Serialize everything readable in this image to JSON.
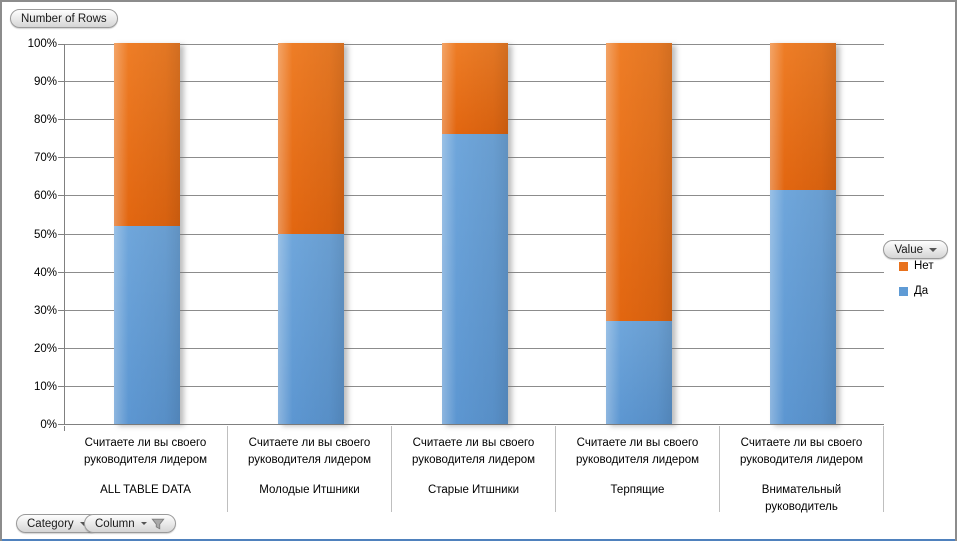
{
  "frame": {
    "bg": "#FFFFFF",
    "border_color": "#8C8C8C",
    "bottom_accent_color": "#4F81BD"
  },
  "axis_selectors": {
    "y_button": "Number of Rows",
    "legend_button": "Value",
    "x_buttons": [
      "Category",
      "Column"
    ]
  },
  "legend": {
    "position": "right",
    "items": [
      {
        "label": "Нет",
        "color": "#E8711C"
      },
      {
        "label": "Да",
        "color": "#5F9BD5"
      }
    ]
  },
  "chart_data": {
    "type": "bar",
    "variant": "100-percent-stacked-column",
    "title": "",
    "xlabel": "",
    "ylabel": "",
    "ylim": [
      0,
      100
    ],
    "y_tick_step": 10,
    "y_tick_suffix": "%",
    "grid": true,
    "legend_position": "right",
    "categories": [
      {
        "question_lines": [
          "Считаете ли вы своего",
          "руководителя лидером"
        ],
        "group_lines": [
          "ALL TABLE DATA"
        ]
      },
      {
        "question_lines": [
          "Считаете ли вы своего",
          "руководителя лидером"
        ],
        "group_lines": [
          "Молодые Итшники"
        ]
      },
      {
        "question_lines": [
          "Считаете ли вы своего",
          "руководителя лидером"
        ],
        "group_lines": [
          "Старые Итшники"
        ]
      },
      {
        "question_lines": [
          "Считаете ли вы своего",
          "руководителя лидером"
        ],
        "group_lines": [
          "Терпящие"
        ]
      },
      {
        "question_lines": [
          "Считаете ли вы своего",
          "руководителя лидером"
        ],
        "group_lines": [
          "Внимательный",
          "руководитель"
        ]
      }
    ],
    "series": [
      {
        "name": "Да",
        "color_top": "#6FA6DB",
        "color_bottom": "#5C96D1",
        "legend_color": "#5F9BD5",
        "values": [
          52,
          50,
          76,
          27,
          61.5
        ]
      },
      {
        "name": "Нет",
        "color_top": "#EE7D26",
        "color_bottom": "#E26610",
        "legend_color": "#E8711C",
        "values": [
          48,
          50,
          24,
          73,
          38.5
        ]
      }
    ]
  }
}
